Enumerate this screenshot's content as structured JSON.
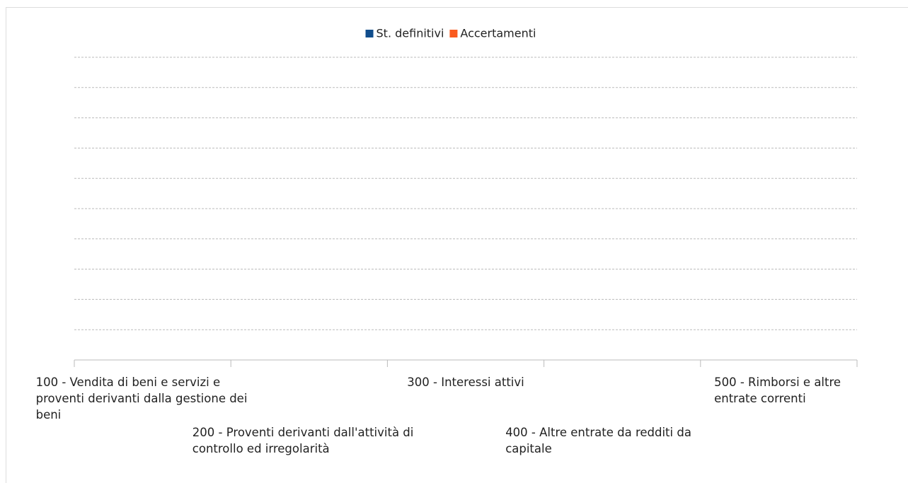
{
  "chart_data": {
    "type": "bar",
    "categories": [
      "100 - Vendita di beni e servizi e proventi derivanti dalla gestione dei beni",
      "200 - Proventi derivanti dall'attività di controllo ed irregolarità",
      "300 - Interessi attivi",
      "400 - Altre entrate da redditi da capitale",
      "500 - Rimborsi e altre entrate correnti"
    ],
    "series": [
      {
        "name": "St. definitivi",
        "color": "#104d8c",
        "values": [
          0,
          0,
          0,
          0,
          0
        ]
      },
      {
        "name": "Accertamenti",
        "color": "#fa5a1e",
        "values": [
          0,
          0,
          0,
          0,
          0
        ]
      }
    ],
    "ylim": [
      0,
      10
    ],
    "yticks": [
      1,
      2,
      3,
      4,
      5,
      6,
      7,
      8,
      9,
      10
    ],
    "grid": true,
    "legend": "top"
  }
}
